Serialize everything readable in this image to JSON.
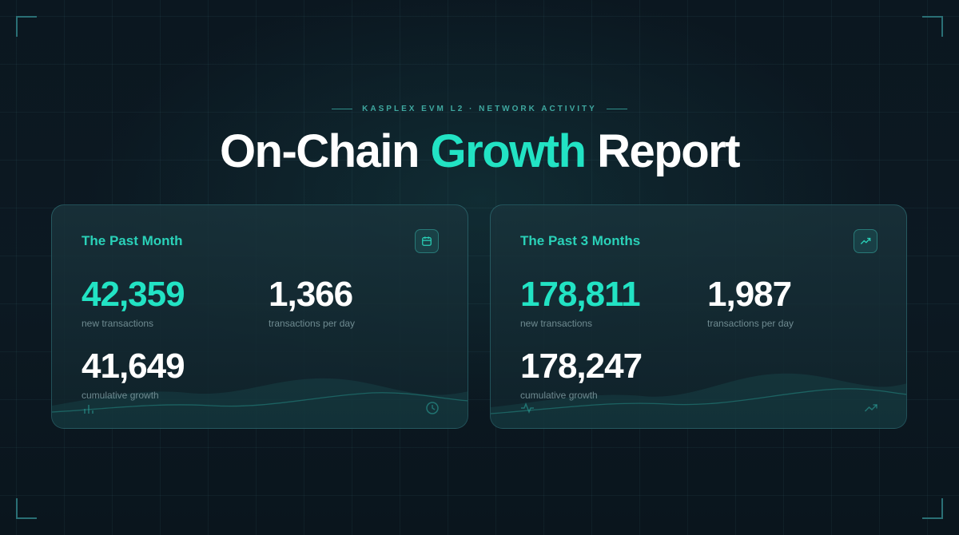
{
  "header": {
    "eyebrow": "KASPLEX EVM L2 · NETWORK ACTIVITY",
    "title_before": "On-Chain",
    "title_accent": "Growth",
    "title_after": "Report"
  },
  "cards": [
    {
      "title": "The Past Month",
      "icon": "calendar-icon",
      "new_transactions": "42,359",
      "new_transactions_label": "new transactions",
      "per_day": "1,366",
      "per_day_label": "transactions per day",
      "cumulative": "41,649",
      "cumulative_label": "cumulative growth",
      "footer_icons": [
        "bar-chart-icon",
        "clock-icon"
      ]
    },
    {
      "title": "The Past 3 Months",
      "icon": "trending-up-icon",
      "new_transactions": "178,811",
      "new_transactions_label": "new transactions",
      "per_day": "1,987",
      "per_day_label": "transactions per day",
      "cumulative": "178,247",
      "cumulative_label": "cumulative growth",
      "footer_icons": [
        "activity-pulse-icon",
        "trending-up-icon"
      ]
    }
  ],
  "colors": {
    "accent": "#22e3c4",
    "background": "#0b1720",
    "label": "#6f8b91"
  }
}
